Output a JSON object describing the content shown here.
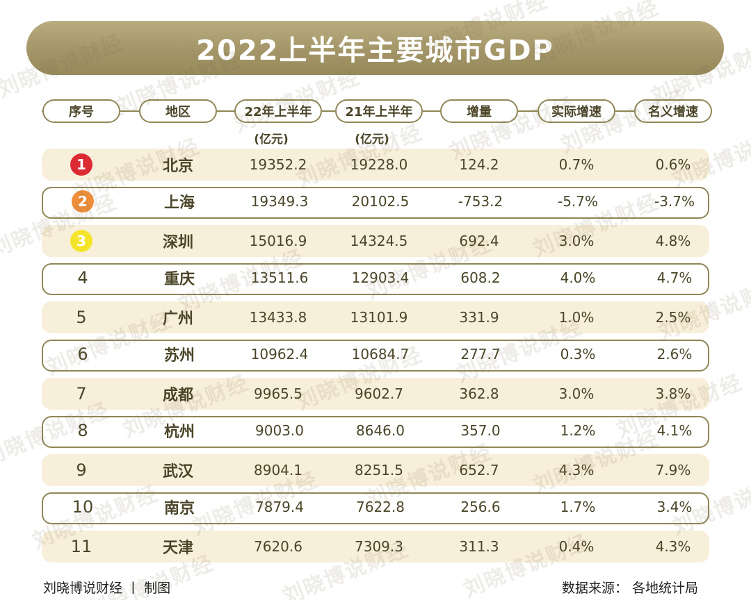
{
  "chart_data": {
    "type": "table",
    "title": "2022上半年主要城市GDP",
    "columns": [
      {
        "label": "序号",
        "sub": ""
      },
      {
        "label": "地区",
        "sub": ""
      },
      {
        "label": "22年上半年",
        "sub": "(亿元)"
      },
      {
        "label": "21年上半年",
        "sub": "(亿元)"
      },
      {
        "label": "增量",
        "sub": ""
      },
      {
        "label": "实际增速",
        "sub": ""
      },
      {
        "label": "名义增速",
        "sub": ""
      }
    ],
    "rows": [
      {
        "rank": "1",
        "city": "北京",
        "h1_2022": "19352.2",
        "h1_2021": "19228.0",
        "increase": "124.2",
        "real_growth": "0.7%",
        "nominal_growth": "0.6%"
      },
      {
        "rank": "2",
        "city": "上海",
        "h1_2022": "19349.3",
        "h1_2021": "20102.5",
        "increase": "-753.2",
        "real_growth": "-5.7%",
        "nominal_growth": "-3.7%"
      },
      {
        "rank": "3",
        "city": "深圳",
        "h1_2022": "15016.9",
        "h1_2021": "14324.5",
        "increase": "692.4",
        "real_growth": "3.0%",
        "nominal_growth": "4.8%"
      },
      {
        "rank": "4",
        "city": "重庆",
        "h1_2022": "13511.6",
        "h1_2021": "12903.4",
        "increase": "608.2",
        "real_growth": "4.0%",
        "nominal_growth": "4.7%"
      },
      {
        "rank": "5",
        "city": "广州",
        "h1_2022": "13433.8",
        "h1_2021": "13101.9",
        "increase": "331.9",
        "real_growth": "1.0%",
        "nominal_growth": "2.5%"
      },
      {
        "rank": "6",
        "city": "苏州",
        "h1_2022": "10962.4",
        "h1_2021": "10684.7",
        "increase": "277.7",
        "real_growth": "0.3%",
        "nominal_growth": "2.6%"
      },
      {
        "rank": "7",
        "city": "成都",
        "h1_2022": "9965.5",
        "h1_2021": "9602.7",
        "increase": "362.8",
        "real_growth": "3.0%",
        "nominal_growth": "3.8%"
      },
      {
        "rank": "8",
        "city": "杭州",
        "h1_2022": "9003.0",
        "h1_2021": "8646.0",
        "increase": "357.0",
        "real_growth": "1.2%",
        "nominal_growth": "4.1%"
      },
      {
        "rank": "9",
        "city": "武汉",
        "h1_2022": "8904.1",
        "h1_2021": "8251.5",
        "increase": "652.7",
        "real_growth": "4.3%",
        "nominal_growth": "7.9%"
      },
      {
        "rank": "10",
        "city": "南京",
        "h1_2022": "7879.4",
        "h1_2021": "7622.8",
        "increase": "256.6",
        "real_growth": "1.7%",
        "nominal_growth": "3.4%"
      },
      {
        "rank": "11",
        "city": "天津",
        "h1_2022": "7620.6",
        "h1_2021": "7309.3",
        "increase": "311.3",
        "real_growth": "0.4%",
        "nominal_growth": "4.3%"
      }
    ]
  },
  "badge_colors": [
    "#dc2a33",
    "#ef8e3a",
    "#f5e52a"
  ],
  "colors": {
    "accent": "#a39567",
    "row_fill": "#f8efda",
    "border": "#8f8656",
    "text": "#4a4528"
  },
  "footer": {
    "credit": "刘晓博说财经 丨 制图",
    "source": "数据来源： 各地统计局"
  },
  "watermark": "刘晓博说财经"
}
